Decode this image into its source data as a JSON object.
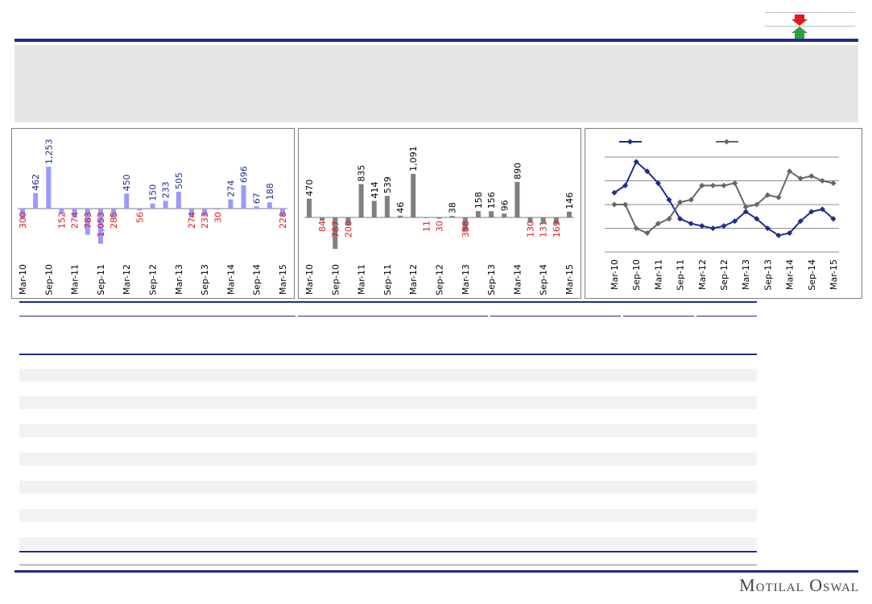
{
  "brand": "Motilal Oswal",
  "colors": {
    "navy": "#1f2c8e",
    "bar1": "#9999ff",
    "bar2": "#808080",
    "neg": "#e31a1c",
    "pos_label": "#1f2c8e",
    "arrow_down": "#e31a1c",
    "arrow_up": "#2e9e3e"
  },
  "icons": [
    "arrow-down-icon",
    "arrow-up-icon"
  ],
  "chart_data": [
    {
      "type": "bar",
      "categories": [
        "Mar-10",
        "Jun-10",
        "Sep-10",
        "Dec-10",
        "Mar-11",
        "Jun-11",
        "Sep-11",
        "Dec-11",
        "Mar-12",
        "Jun-12",
        "Sep-12",
        "Dec-12",
        "Mar-13",
        "Jun-13",
        "Sep-13",
        "Dec-13",
        "Mar-14",
        "Jun-14",
        "Sep-14",
        "Dec-14",
        "Mar-15"
      ],
      "tick_labels": [
        "Mar-10",
        "Sep-10",
        "Mar-11",
        "Sep-11",
        "Mar-12",
        "Sep-12",
        "Mar-13",
        "Sep-13",
        "Mar-14",
        "Sep-14",
        "Mar-15"
      ],
      "values": [
        -300,
        462,
        1253,
        -152,
        -274,
        -783,
        -1053,
        -285,
        450,
        -56,
        150,
        233,
        505,
        -274,
        -233,
        -30,
        274,
        696,
        67,
        188,
        -228
      ],
      "labels": [
        "300",
        "462",
        "1,253",
        "152",
        "274",
        "783",
        "1,053",
        "285",
        "450",
        "56",
        "150",
        "233",
        "505",
        "274",
        "233",
        "30",
        "274",
        "696",
        "67",
        "188",
        "228"
      ],
      "grid": false
    },
    {
      "type": "bar",
      "categories": [
        "Mar-10",
        "Jun-10",
        "Sep-10",
        "Dec-10",
        "Mar-11",
        "Jun-11",
        "Sep-11",
        "Dec-11",
        "Mar-12",
        "Jun-12",
        "Sep-12",
        "Dec-12",
        "Mar-13",
        "Jun-13",
        "Sep-13",
        "Dec-13",
        "Mar-14",
        "Jun-14",
        "Sep-14",
        "Dec-14",
        "Mar-15"
      ],
      "tick_labels": [
        "Mar-10",
        "Sep-10",
        "Mar-11",
        "Sep-11",
        "Mar-12",
        "Sep-12",
        "Mar-13",
        "Sep-13",
        "Mar-14",
        "Sep-14",
        "Mar-15"
      ],
      "values": [
        470,
        -84,
        -787,
        -200,
        835,
        414,
        539,
        46,
        1091,
        -11,
        -30,
        38,
        -358,
        158,
        156,
        96,
        890,
        -130,
        -131,
        -169,
        146
      ],
      "labels": [
        "470",
        "84",
        "787",
        "200",
        "835",
        "414",
        "539",
        "46",
        "1,091",
        "11",
        "30",
        "38",
        "358",
        "158",
        "156",
        "96",
        "890",
        "130",
        "131",
        "169",
        "146"
      ],
      "grid": false
    },
    {
      "type": "line",
      "categories": [
        "Mar-10",
        "Jun-10",
        "Sep-10",
        "Dec-10",
        "Mar-11",
        "Jun-11",
        "Sep-11",
        "Dec-11",
        "Mar-12",
        "Jun-12",
        "Sep-12",
        "Dec-12",
        "Mar-13",
        "Jun-13",
        "Sep-13",
        "Dec-13",
        "Mar-14",
        "Jun-14",
        "Sep-14",
        "Dec-14",
        "Mar-15"
      ],
      "tick_labels": [
        "Mar-10",
        "Sep-10",
        "Mar-11",
        "Sep-11",
        "Mar-12",
        "Sep-12",
        "Mar-13",
        "Sep-13",
        "Mar-14",
        "Sep-14",
        "Mar-15"
      ],
      "series": [
        {
          "color": "#1f2c8e",
          "values": [
            35,
            38,
            48,
            44,
            39,
            32,
            24,
            22,
            21,
            20,
            21,
            23,
            27,
            24,
            20,
            17,
            18,
            23,
            27,
            28,
            24
          ]
        },
        {
          "color": "#666666",
          "values": [
            30,
            30,
            20,
            18,
            22,
            24,
            31,
            32,
            38,
            38,
            38,
            39,
            29,
            30,
            34,
            33,
            44,
            41,
            42,
            40,
            39
          ]
        }
      ],
      "ylim": [
        10,
        50
      ],
      "grid": true,
      "legend": "top"
    }
  ]
}
